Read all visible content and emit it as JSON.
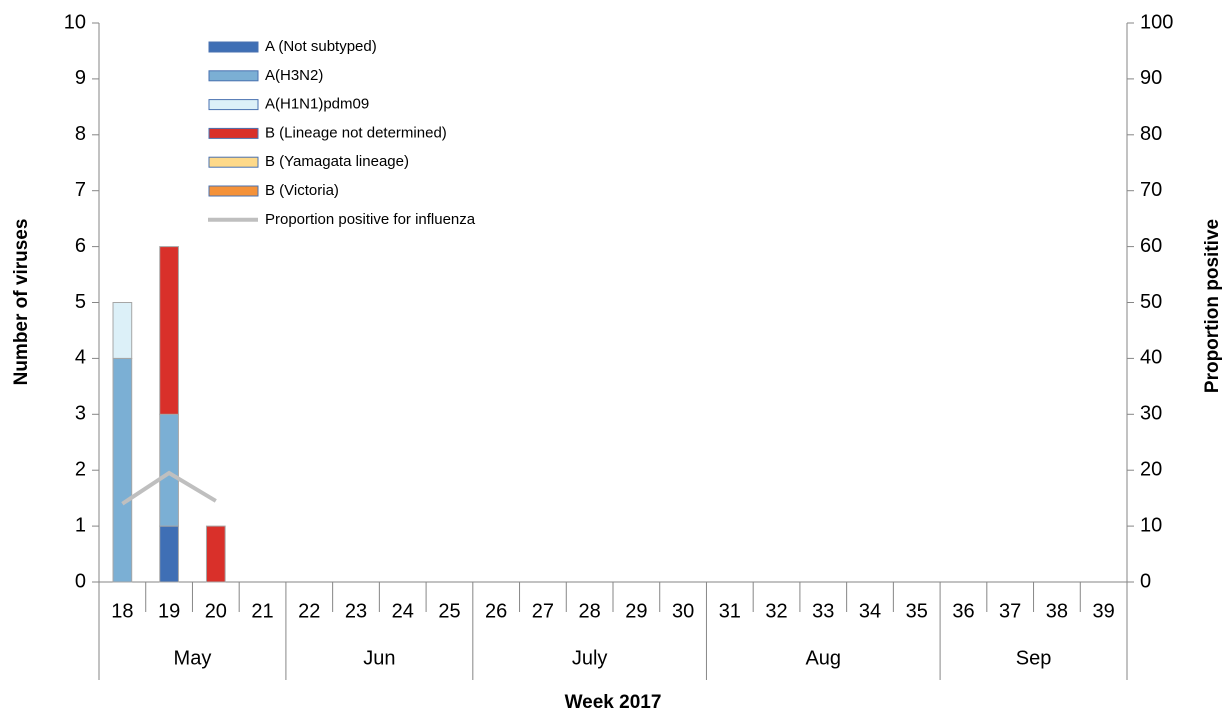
{
  "chart_data": {
    "type": "bar",
    "x_label": "Week 2017",
    "y_label": "Number of viruses",
    "y2_label": "Proportion positive",
    "categories": [
      "18",
      "19",
      "20",
      "21",
      "22",
      "23",
      "24",
      "25",
      "26",
      "27",
      "28",
      "29",
      "30",
      "31",
      "32",
      "33",
      "34",
      "35",
      "36",
      "37",
      "38",
      "39"
    ],
    "months": [
      "May",
      "May",
      "May",
      "May",
      "Jun",
      "Jun",
      "Jun",
      "Jun",
      "July",
      "July",
      "July",
      "July",
      "July",
      "Aug",
      "Aug",
      "Aug",
      "Aug",
      "Aug",
      "Sep",
      "Sep",
      "Sep",
      "Sep"
    ],
    "series": [
      {
        "name": "A (Not subtyped)",
        "color": "#3f6fb5",
        "values": [
          0,
          1,
          0,
          0,
          0,
          0,
          0,
          0,
          0,
          0,
          0,
          0,
          0,
          0,
          0,
          0,
          0,
          0,
          0,
          0,
          0,
          0
        ]
      },
      {
        "name": "A(H3N2)",
        "color": "#7bafd4",
        "values": [
          4,
          2,
          0,
          0,
          0,
          0,
          0,
          0,
          0,
          0,
          0,
          0,
          0,
          0,
          0,
          0,
          0,
          0,
          0,
          0,
          0,
          0
        ]
      },
      {
        "name": "A(H1N1)pdm09",
        "color": "#dcf0f8",
        "values": [
          1,
          0,
          0,
          0,
          0,
          0,
          0,
          0,
          0,
          0,
          0,
          0,
          0,
          0,
          0,
          0,
          0,
          0,
          0,
          0,
          0,
          0
        ]
      },
      {
        "name": "B (Lineage not determined)",
        "color": "#d9302a",
        "values": [
          0,
          3,
          1,
          0,
          0,
          0,
          0,
          0,
          0,
          0,
          0,
          0,
          0,
          0,
          0,
          0,
          0,
          0,
          0,
          0,
          0,
          0
        ]
      },
      {
        "name": "B (Yamagata lineage)",
        "color": "#fdd98a",
        "values": [
          0,
          0,
          0,
          0,
          0,
          0,
          0,
          0,
          0,
          0,
          0,
          0,
          0,
          0,
          0,
          0,
          0,
          0,
          0,
          0,
          0,
          0
        ]
      },
      {
        "name": "B (Victoria)",
        "color": "#f4923a",
        "values": [
          0,
          0,
          0,
          0,
          0,
          0,
          0,
          0,
          0,
          0,
          0,
          0,
          0,
          0,
          0,
          0,
          0,
          0,
          0,
          0,
          0,
          0
        ]
      },
      {
        "name": "Proportion positive for influenza",
        "color": "#bfbfbf",
        "axis": "y2",
        "type": "line",
        "values": [
          14,
          19.5,
          14.5,
          null,
          null,
          null,
          null,
          null,
          null,
          null,
          null,
          null,
          null,
          null,
          null,
          null,
          null,
          null,
          null,
          null,
          null,
          null
        ]
      }
    ],
    "ylim": [
      0,
      10
    ],
    "yticks": [
      0,
      1,
      2,
      3,
      4,
      5,
      6,
      7,
      8,
      9,
      10
    ],
    "y2lim": [
      0,
      100
    ],
    "y2ticks": [
      0,
      10,
      20,
      30,
      40,
      50,
      60,
      70,
      80,
      90,
      100
    ],
    "grid": false,
    "stacked": true
  }
}
